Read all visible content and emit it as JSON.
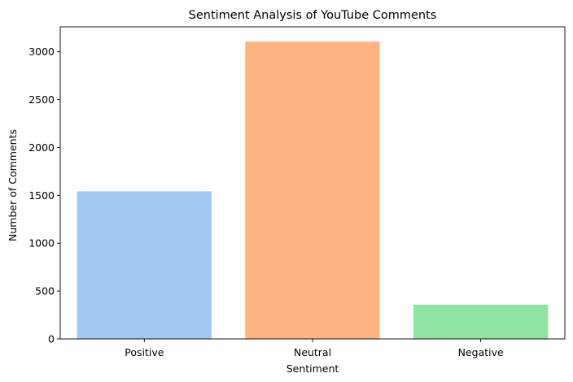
{
  "chart_data": {
    "type": "bar",
    "title": "Sentiment Analysis of YouTube Comments",
    "xlabel": "Sentiment",
    "ylabel": "Number of Comments",
    "categories": [
      "Positive",
      "Neutral",
      "Negative"
    ],
    "values": [
      1542,
      3106,
      357
    ],
    "colors": [
      "#a1c9f4",
      "#ffb482",
      "#8de5a1"
    ],
    "ylim": [
      0,
      3261
    ],
    "yticks": [
      0,
      500,
      1000,
      1500,
      2000,
      2500,
      3000
    ],
    "grid": false,
    "legend": "none"
  }
}
